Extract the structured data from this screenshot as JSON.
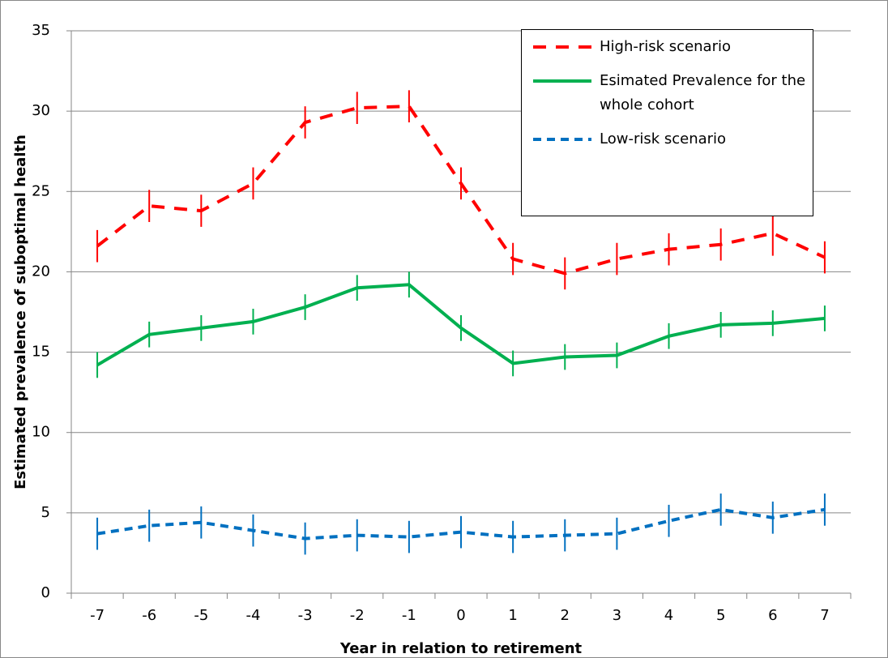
{
  "chart_data": {
    "type": "line",
    "x_label": "Year in relation to retirement",
    "y_label": "Estimated prevalence of suboptimal health",
    "categories": [
      "-7",
      "-6",
      "-5",
      "-4",
      "-3",
      "-2",
      "-1",
      "0",
      "1",
      "2",
      "3",
      "4",
      "5",
      "6",
      "7"
    ],
    "series": [
      {
        "name": "High-risk scenario",
        "color": "#ff0000",
        "line_style": "dashed",
        "values": [
          21.6,
          24.1,
          23.8,
          25.5,
          29.3,
          30.2,
          30.3,
          25.5,
          20.8,
          19.9,
          20.8,
          21.4,
          21.7,
          22.4,
          20.9
        ],
        "errors": [
          1.0,
          1.0,
          1.0,
          1.0,
          1.0,
          1.0,
          1.0,
          1.0,
          1.0,
          1.0,
          1.0,
          1.0,
          1.0,
          1.4,
          1.0
        ]
      },
      {
        "name": "Esimated Prevalence for the whole cohort",
        "color": "#00b050",
        "line_style": "solid",
        "values": [
          14.2,
          16.1,
          16.5,
          16.9,
          17.8,
          19.0,
          19.2,
          16.5,
          14.3,
          14.7,
          14.8,
          16.0,
          16.7,
          16.8,
          17.1
        ],
        "errors": [
          0.8,
          0.8,
          0.8,
          0.8,
          0.8,
          0.8,
          0.8,
          0.8,
          0.8,
          0.8,
          0.8,
          0.8,
          0.8,
          0.8,
          0.8
        ]
      },
      {
        "name": "Low-risk scenario",
        "color": "#0070c0",
        "line_style": "dashed",
        "values": [
          3.7,
          4.2,
          4.4,
          3.9,
          3.4,
          3.6,
          3.5,
          3.8,
          3.5,
          3.6,
          3.7,
          4.5,
          5.2,
          4.7,
          5.2
        ],
        "errors": [
          1.0,
          1.0,
          1.0,
          1.0,
          1.0,
          1.0,
          1.0,
          1.0,
          1.0,
          1.0,
          1.0,
          1.0,
          1.0,
          1.0,
          1.0
        ]
      }
    ],
    "ylim": [
      0,
      35
    ],
    "yticks": [
      0,
      5,
      10,
      15,
      20,
      25,
      30,
      35
    ],
    "grid": true,
    "legend": "top-right"
  }
}
